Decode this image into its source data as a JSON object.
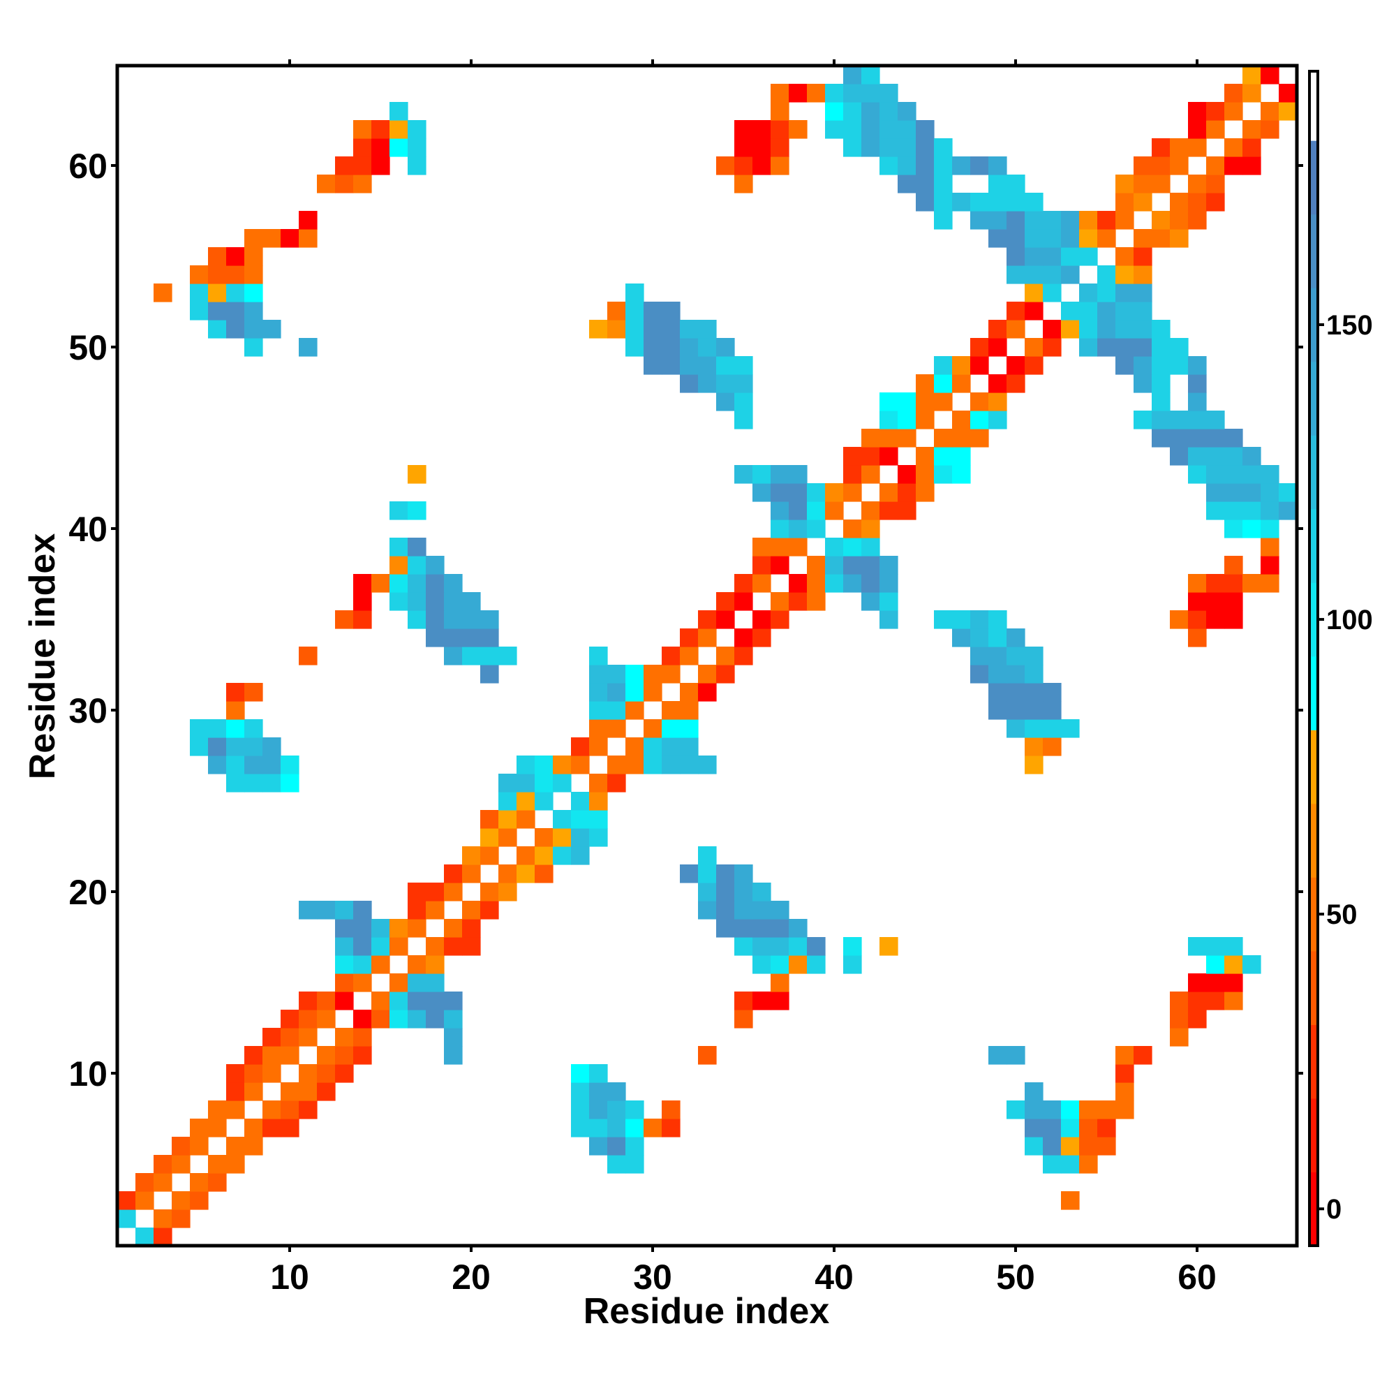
{
  "chart_data": {
    "type": "heatmap",
    "title": "",
    "xlabel": "Residue index",
    "ylabel": "Residue index",
    "n_residues": 65,
    "xlim": [
      1,
      65
    ],
    "ylim": [
      1,
      65
    ],
    "x_ticks": [
      "10",
      "20",
      "30",
      "40",
      "50",
      "60"
    ],
    "y_ticks": [
      "10",
      "20",
      "30",
      "40",
      "50",
      "60"
    ],
    "grid": false,
    "colorbar": {
      "placement": "right",
      "range": [
        -6.25,
        193
      ],
      "ticks": [
        "0",
        "50",
        "100",
        "150"
      ],
      "bands": [
        {
          "min": -6.25,
          "max": 6.25,
          "color": "#ff0000"
        },
        {
          "min": 6.25,
          "max": 18.75,
          "color": "#ff1a00"
        },
        {
          "min": 18.75,
          "max": 31.25,
          "color": "#ff3300"
        },
        {
          "min": 31.25,
          "max": 43.75,
          "color": "#ff5a00"
        },
        {
          "min": 43.75,
          "max": 56.25,
          "color": "#ff7000"
        },
        {
          "min": 56.25,
          "max": 68.75,
          "color": "#ff8a00"
        },
        {
          "min": 68.75,
          "max": 81.25,
          "color": "#ffa500"
        },
        {
          "min": 81.25,
          "max": 93.75,
          "color": "#00ffff"
        },
        {
          "min": 93.75,
          "max": 106.25,
          "color": "#12e6f0"
        },
        {
          "min": 106.25,
          "max": 118.75,
          "color": "#1ed2e6"
        },
        {
          "min": 118.75,
          "max": 131.25,
          "color": "#2bbcdc"
        },
        {
          "min": 131.25,
          "max": 143.75,
          "color": "#36aad4"
        },
        {
          "min": 143.75,
          "max": 156.25,
          "color": "#3e9ccc"
        },
        {
          "min": 156.25,
          "max": 168.75,
          "color": "#4a8ec4"
        },
        {
          "min": 168.75,
          "max": 181.25,
          "color": "#5080bf"
        },
        {
          "min": 181.25,
          "max": 193,
          "color": "#ffffff"
        }
      ]
    },
    "value_codes": {
      "R": 0,
      "r": 25,
      "q": 37,
      "o": 50,
      "p": 62,
      "y": 75,
      "c": 88,
      "e": 100,
      "d": 112,
      "l": 125,
      "m": 137,
      "b": 162
    },
    "rows": {
      "1": "2d 3r",
      "2": "1d 3o 4q",
      "3": "1r 2o 4o 5q 53o",
      "4": "2q 3o 5o 6q",
      "5": "3q 4o 6o 7o 28d 29d 52d 53d 54o",
      "6": "4q 5o 7o 8o 27m 28b 29d 51d 52b 53y 54q 55q",
      "7": "5o 6o 8o 9r 10r 26d 27d 28l 29c 30o 31r 51b 52b 53e 54q 55r",
      "8": "6o 7o 9o 10q 11r 26d 27m 28l 29d 31q 50d 51m 52m 53c 54o 55o 56o",
      "9": "7r 8o 10o 11o 12r 26d 27m 28m 51m 56o",
      "10": "7r 8q 9o 11o 12q 13r 26c 27d 56r",
      "11": "8r 9o 10o 12o 13q 14r 19m 33q 49m 50m 56o 57r",
      "12": "9r 10q 11o 13o 14q 19m 59o",
      "13": "10r 11q 12o 14R 15q 16e 17l 18b 19l 35q 59q 60r",
      "14": "11r 12q 13R 15o 16d 17b 18b 19b 35r 36R 37R 59q 60r 61r 62o",
      "15": "13q 14o 16o 17l 18l 37o 60R 61R 62R",
      "16": "13e 14d 15o 17o 18p 36d 37e 38p 39d 41d 61c 62y 63d",
      "17": "13l 14b 15d 16o 18o 19r 20r 35d 36l 37l 38d 39b 41e 43y 60d 61d 62d",
      "18": "13b 14b 15l 16p 17o 19o 20r 34b 35b 36b 37b 38m",
      "19": "11m 12m 13l 14b 17r 18o 20o 21r 33m 34b 35m 36m 37m",
      "20": "17r 18r 19o 21o 22p 33l 34b 35m 36l",
      "21": "19r 20o 22o 23y 24q 32b 33d 34b 35m",
      "22": "20p 21o 23o 24y 25d 26l 33d",
      "23": "21y 22o 24o 25y 26l 27d",
      "24": "21q 22y 23o 25d 26e 27e",
      "25": "22d 23y 24d 26d 27p",
      "26": "7d 8d 9d 10c 22l 23l 24e 25d 27o 28r",
      "27": "6m 7d 8m 9m 10e 23d 24e 25p 26o 28o 29o 30d 31l 32l 33l 51y",
      "28": "5d 6b 7l 8l 9m 26r 27o 29o 30d 31l 32l 51p 52o",
      "29": "5d 6d 7c 8d 27o 28o 30o 31c 32c 50l 51d 52d 53d",
      "30": "7o 27d 28d 29o 31o 32o 49b 50b 51b 52b",
      "31": "7r 8q 27l 28m 29c 30o 32o 33R 49b 50b 51b 52b",
      "32": "21b 27l 28l 29c 30o 31o 33o 34r 48b 49m 50m 51l",
      "33": "11q 19m 20d 21d 22d 27d 31r 32o 34o 35r 48m 49m 50l 51l",
      "34": "18b 19b 20b 21b 32r 33o 35R 36r 47m 48l 49d 50m 60q",
      "35": "13q 14r 17d 18b 19m 20m 21m 33r 34R 36R 37r 43l 46d 47d 48l 49d 59o 60r 61R 62R",
      "36": "14R 16d 17l 18b 19m 20m 34r 35R 37o 38r 39o 42m 43d 60R 61R 62R",
      "37": "14R 15o 16e 17l 18b 19m 35r 36o 38R 39o 40d 41m 42b 43m 60o 61r 62r 63o 64o",
      "38": "16p 17d 18m 36r 37R 39o 40l 41b 42b 43m 62q 64R",
      "39": "16d 17b 36o 37o 38o 40d 41e 42d 64o",
      "40": "37d 38l 39d 41o 42p 62e 63c 64e",
      "41": "16d 17e 37m 38b 39e 40o 42o 43r 44r 61d 62d 63d 64l 65m",
      "42": "36m 37b 38b 39d 40p 41o 43o 44r 45o 61m 62m 63m 64l 65d",
      "43": "17y 35l 36d 37m 38m 41r 42o 44R 45o 46e 47c 60d 61l 62l 63l 64l",
      "44": "41r 42r 43R 45o 46c 47c 59b 60l 61l 62l 63m",
      "45": "42o 43o 44o 46o 47o 48o 58b 59b 60b 61b 62b",
      "46": "35d 43e 44c 45o 47o 48c 49d 57d 58l 59l 60l 61l",
      "47": "34m 35d 43c 44c 45o 46o 48o 49p 58d 60m",
      "48": "32b 33m 34l 35l 45o 46c 47o 49R 50r 57m 58d 60b",
      "49": "30b 31b 32m 33m 34d 35d 46d 47p 48R 50R 51r 56b 57m 58d 59d 60m",
      "50": "8d 11m 29d 30b 31b 32m 33l 34m 48r 49R 51o 52r 54l 55b 56b 57b 58d 59d",
      "51": "6d 7b 8m 9m 27y 28p 29d 30b 31b 32l 33l 49r 50o 52R 53y 54d 55m 56l 57l 58d",
      "52": "5d 6b 7b 8m 28o 29d 30b 31b 50r 51R 53d 54d 55m 56l 57l",
      "53": "3o 5d 6y 7d 8c 29d 51y 52d 54l 55d 56m 57m",
      "54": "5o 6q 7q 8o 50l 51l 52l 53m 55d 56y 57p",
      "55": "6q 7R 8o 50b 51m 52m 53d 54d 56o 57r",
      "56": "8o 9o 10R 11o 49b 50b 51l 52l 53m 54y 55o 57o 58o 59p",
      "57": "11R 46d 48m 49m 50b 51l 52l 53m 54p 55r 56o 58p 59o 60q",
      "58": "45b 46d 47l 48d 49d 50d 51d 56o 57p 59o 60q 61r",
      "59": "12o 13q 14o 35o 44b 45b 46d 49d 50d 56p 57o 58o 60o 61q",
      "60": "13r 14r 15R 17d 34q 35r 36R 37o 43d 44l 45b 46d 47m 48b 49m 57q 58q 59o 61o 62R 63R",
      "61": "14r 15R 16c 17d 35R 36R 37r 41d 42m 43l 44l 45b 46d 58r 59o 60o 62o 63r",
      "62": "14o 15r 16y 17d 35R 36R 37r 38o 40d 41d 42m 43l 44l 45b 60R 61o 63o 64q",
      "63": "16d 37o 40c 41d 42m 43l 44m 60R 61r 62o 64o 65y",
      "64": "37o 38R 39o 40d 41l 42l 43l 62q 63p 65R",
      "65": "41m 42d 63y 64R"
    }
  }
}
